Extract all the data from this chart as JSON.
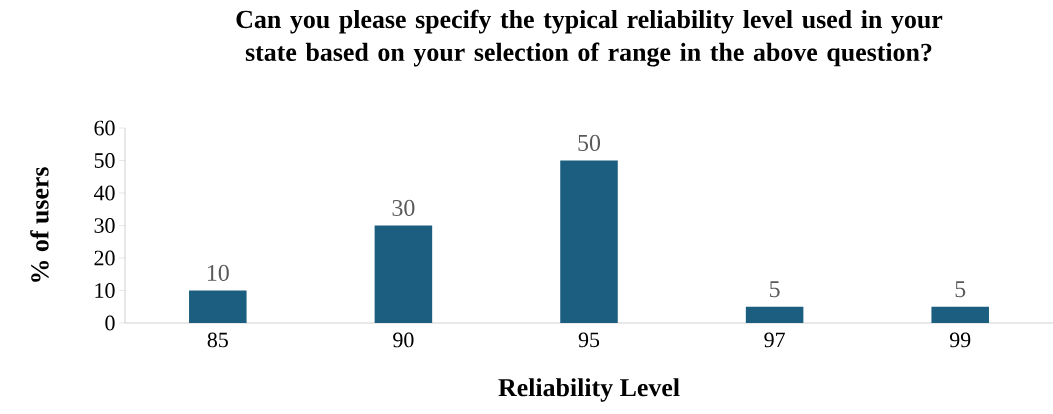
{
  "chart_data": {
    "type": "bar",
    "title": "Can you please specify the typical reliability level used in your state based on your selection of range in the above question?",
    "xlabel": "Reliability Level",
    "ylabel": "% of users",
    "categories": [
      "85",
      "90",
      "95",
      "97",
      "99"
    ],
    "values": [
      10,
      30,
      50,
      5,
      5
    ],
    "color": "#1b5e80",
    "ylim": [
      0,
      60
    ],
    "yticks": [
      0,
      10,
      20,
      30,
      40,
      50,
      60
    ],
    "data_labels": true,
    "grid": false
  }
}
